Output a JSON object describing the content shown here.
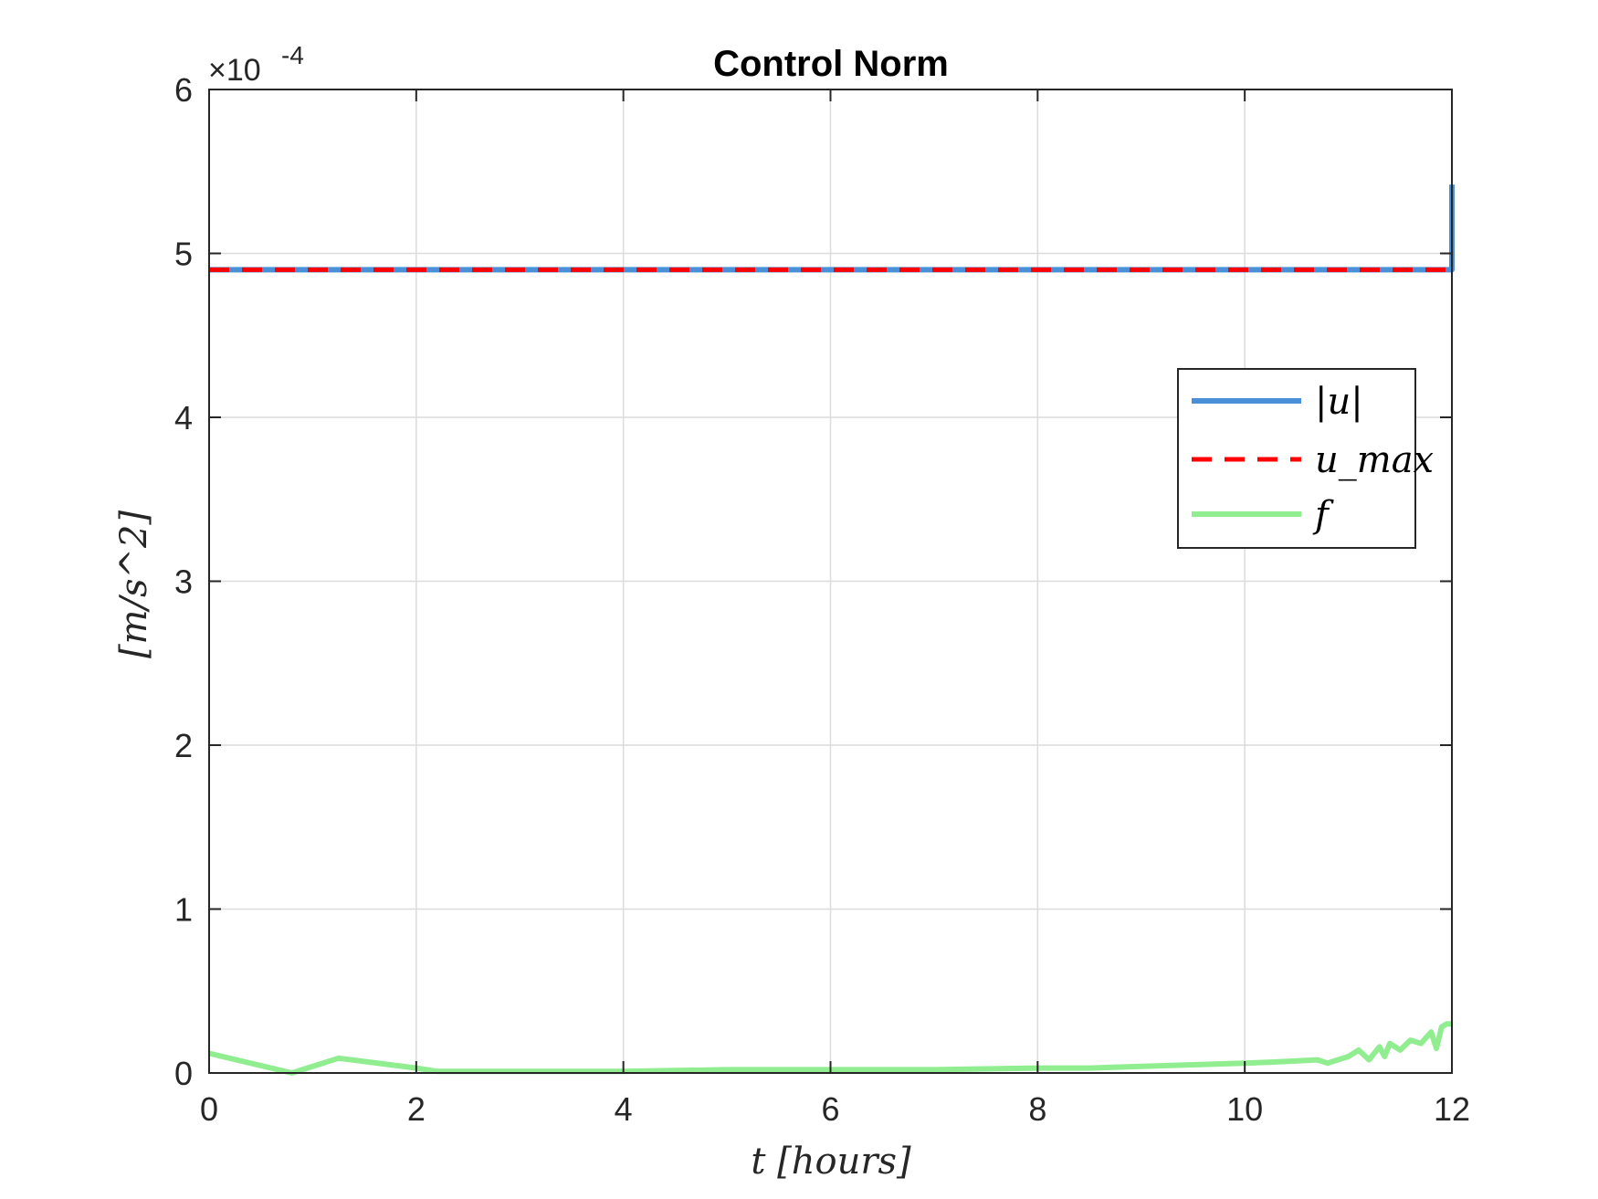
{
  "chart_data": {
    "type": "line",
    "title": "Control Norm",
    "xlabel": "t [hours]",
    "ylabel": "[m/s^2]",
    "y_multiplier": "×10",
    "y_multiplier_exponent": "-4",
    "xlim": [
      0,
      12
    ],
    "ylim": [
      0,
      6
    ],
    "x_ticks": [
      "0",
      "2",
      "4",
      "6",
      "8",
      "10",
      "12"
    ],
    "y_ticks": [
      "0",
      "1",
      "2",
      "3",
      "4",
      "5",
      "6"
    ],
    "grid": true,
    "legend_position": "right",
    "series": [
      {
        "name": "|u|",
        "color": "#4a90d9",
        "style": "solid",
        "x": [
          0,
          11.96,
          11.96,
          12.0,
          12.0
        ],
        "y": [
          4.9,
          4.9,
          4.9,
          4.9,
          5.42
        ]
      },
      {
        "name": "u_max",
        "color": "#ff0000",
        "style": "dashed",
        "x": [
          0,
          12
        ],
        "y": [
          4.9,
          4.9
        ]
      },
      {
        "name": "f",
        "color": "#90ee90",
        "style": "solid",
        "x": [
          0,
          0.8,
          1.25,
          2.0,
          2.2,
          3.0,
          4.0,
          5.0,
          6.0,
          7.0,
          8.0,
          8.5,
          9.0,
          9.5,
          10.0,
          10.4,
          10.7,
          10.8,
          11.0,
          11.1,
          11.2,
          11.3,
          11.35,
          11.4,
          11.5,
          11.6,
          11.7,
          11.8,
          11.85,
          11.9,
          11.95,
          12.0
        ],
        "y": [
          0.12,
          0.0,
          0.09,
          0.03,
          0.01,
          0.01,
          0.01,
          0.02,
          0.02,
          0.02,
          0.03,
          0.03,
          0.04,
          0.05,
          0.06,
          0.07,
          0.08,
          0.06,
          0.1,
          0.14,
          0.08,
          0.16,
          0.1,
          0.18,
          0.14,
          0.2,
          0.18,
          0.25,
          0.15,
          0.28,
          0.3,
          0.3
        ]
      }
    ]
  }
}
